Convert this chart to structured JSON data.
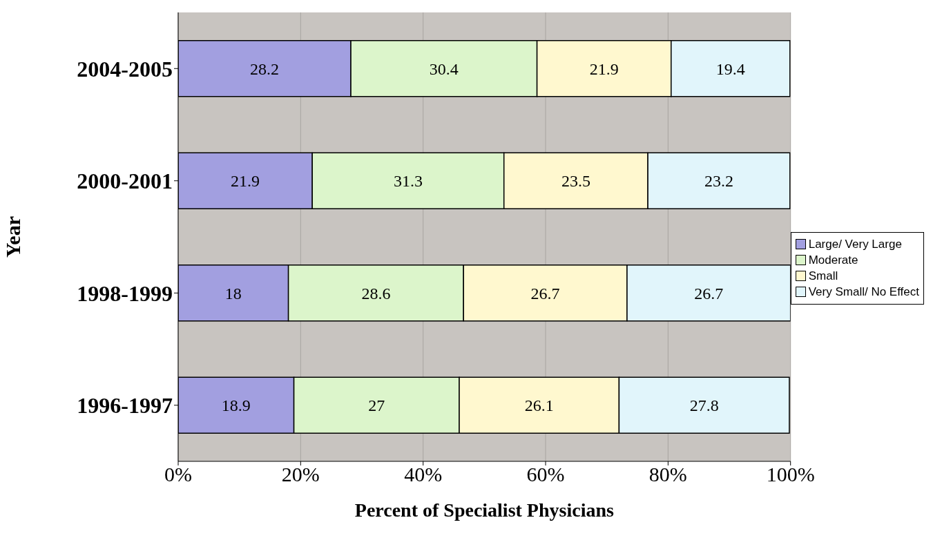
{
  "chart_data": {
    "type": "bar",
    "orientation": "horizontal",
    "stacked": true,
    "xlabel": "Percent of Specialist Physicians",
    "ylabel": "Year",
    "categories": [
      "2004-2005",
      "2000-2001",
      "1998-1999",
      "1996-1997"
    ],
    "series": [
      {
        "name": "Large/ Very Large",
        "color": "#a29fe0",
        "values": [
          28.2,
          21.9,
          18,
          18.9
        ]
      },
      {
        "name": "Moderate",
        "color": "#dcf5cb",
        "values": [
          30.4,
          31.3,
          28.6,
          27
        ]
      },
      {
        "name": "Small",
        "color": "#fff8cf",
        "values": [
          21.9,
          23.5,
          26.7,
          26.1
        ]
      },
      {
        "name": "Very Small/ No Effect",
        "color": "#e1f5fb",
        "values": [
          19.4,
          23.2,
          26.7,
          27.8
        ]
      }
    ],
    "xlim": [
      0,
      100
    ],
    "xticks": [
      {
        "value": 0,
        "label": "0%"
      },
      {
        "value": 20,
        "label": "20%"
      },
      {
        "value": 40,
        "label": "40%"
      },
      {
        "value": 60,
        "label": "60%"
      },
      {
        "value": 80,
        "label": "80%"
      },
      {
        "value": 100,
        "label": "100%"
      }
    ],
    "data_labels": true,
    "grid": "x",
    "legend": "right"
  }
}
